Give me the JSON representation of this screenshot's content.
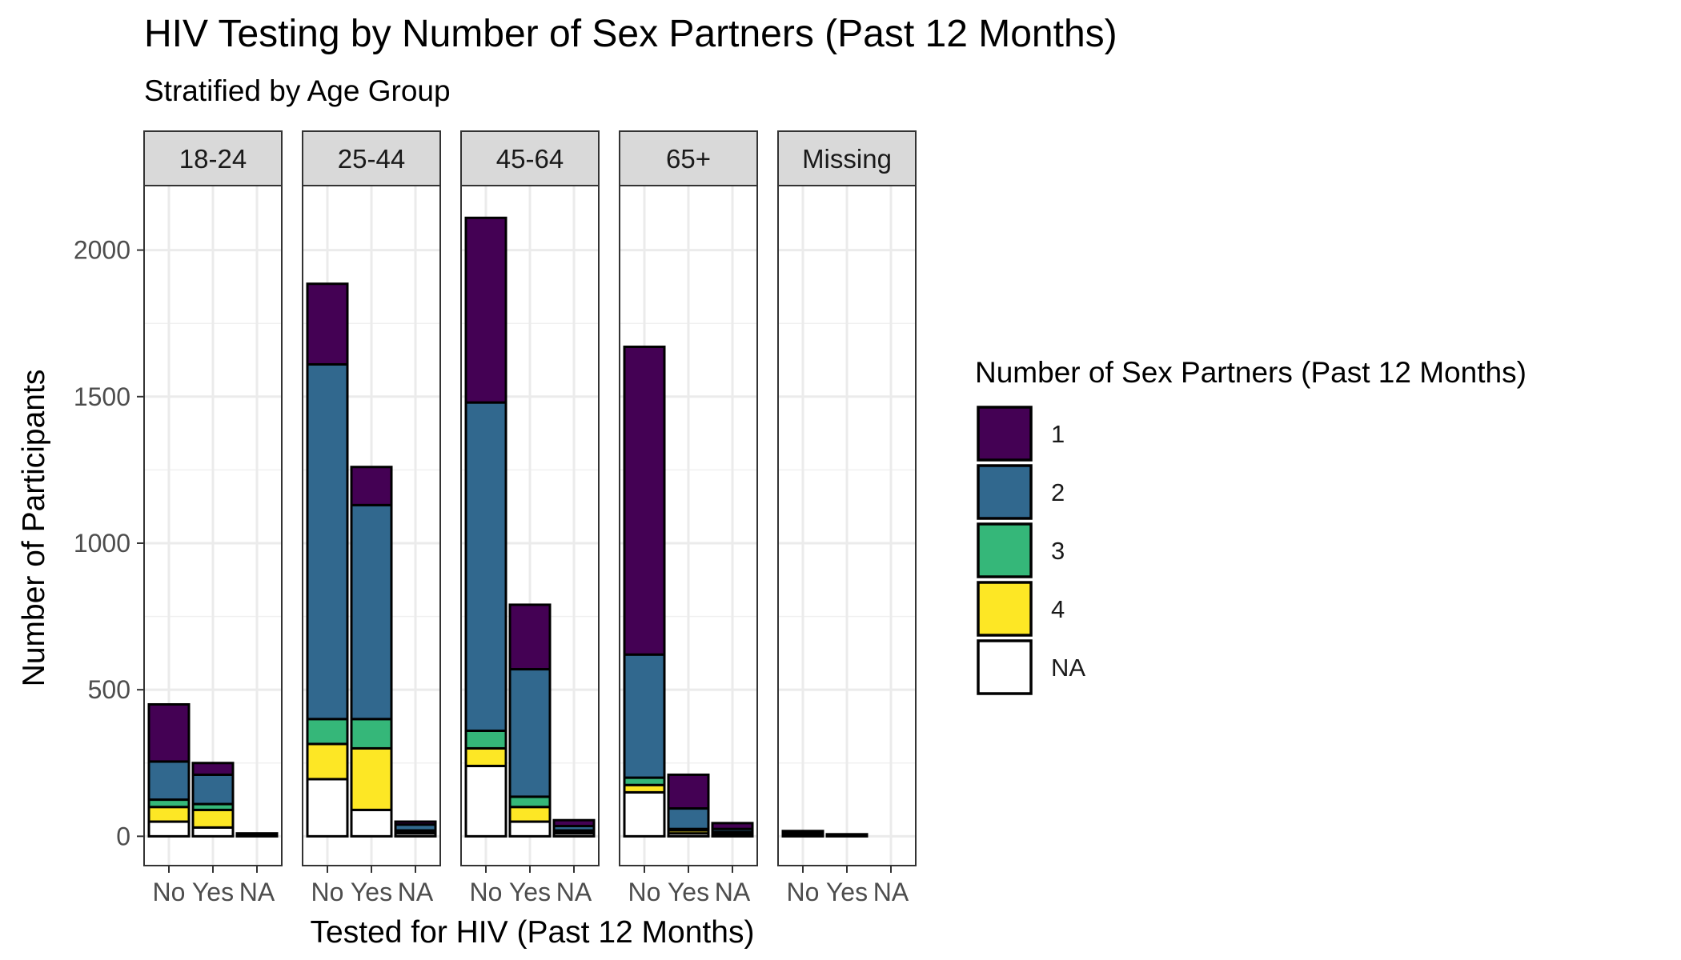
{
  "chart_data": {
    "type": "bar",
    "stacked": true,
    "title": "HIV Testing by Number of Sex Partners (Past 12 Months)",
    "subtitle": "Stratified by Age Group",
    "xlabel": "Tested for HIV (Past 12 Months)",
    "ylabel": "Number of Participants",
    "ylim": [
      -100,
      2220
    ],
    "yticks": [
      0,
      500,
      1000,
      1500,
      2000
    ],
    "grid": true,
    "categories": [
      "No",
      "Yes",
      "NA"
    ],
    "legend": {
      "title": "Number of Sex Partners (Past 12 Months)",
      "placement": "right",
      "entries": [
        "1",
        "2",
        "3",
        "4",
        "NA"
      ]
    },
    "colors": {
      "1": "#440154",
      "2": "#31688e",
      "3": "#35b779",
      "4": "#fde725",
      "NA": "#ffffff"
    },
    "facets": [
      {
        "label": "18-24",
        "stacks": [
          {
            "x": "No",
            "values": {
              "NA": 50,
              "4": 50,
              "3": 25,
              "2": 130,
              "1": 195
            }
          },
          {
            "x": "Yes",
            "values": {
              "NA": 30,
              "4": 60,
              "3": 20,
              "2": 100,
              "1": 40
            }
          },
          {
            "x": "NA",
            "values": {
              "NA": 0,
              "4": 2,
              "3": 0,
              "2": 3,
              "1": 5
            }
          }
        ]
      },
      {
        "label": "25-44",
        "stacks": [
          {
            "x": "No",
            "values": {
              "NA": 195,
              "4": 120,
              "3": 85,
              "2": 1210,
              "1": 275
            }
          },
          {
            "x": "Yes",
            "values": {
              "NA": 90,
              "4": 210,
              "3": 100,
              "2": 730,
              "1": 130
            }
          },
          {
            "x": "NA",
            "values": {
              "NA": 10,
              "4": 5,
              "3": 5,
              "2": 20,
              "1": 10
            }
          }
        ]
      },
      {
        "label": "45-64",
        "stacks": [
          {
            "x": "No",
            "values": {
              "NA": 240,
              "4": 60,
              "3": 60,
              "2": 1120,
              "1": 630
            }
          },
          {
            "x": "Yes",
            "values": {
              "NA": 50,
              "4": 50,
              "3": 35,
              "2": 435,
              "1": 220
            }
          },
          {
            "x": "NA",
            "values": {
              "NA": 10,
              "4": 5,
              "3": 5,
              "2": 15,
              "1": 20
            }
          }
        ]
      },
      {
        "label": "65+",
        "stacks": [
          {
            "x": "No",
            "values": {
              "NA": 150,
              "4": 25,
              "3": 25,
              "2": 420,
              "1": 1050
            }
          },
          {
            "x": "Yes",
            "values": {
              "NA": 10,
              "4": 10,
              "3": 5,
              "2": 70,
              "1": 115
            }
          },
          {
            "x": "NA",
            "values": {
              "NA": 5,
              "4": 5,
              "3": 5,
              "2": 10,
              "1": 20
            }
          }
        ]
      },
      {
        "label": "Missing",
        "stacks": [
          {
            "x": "No",
            "values": {
              "NA": 5,
              "4": 2,
              "3": 1,
              "2": 4,
              "1": 6
            }
          },
          {
            "x": "Yes",
            "values": {
              "NA": 1,
              "4": 1,
              "3": 0,
              "2": 2,
              "1": 3
            }
          },
          {
            "x": "NA",
            "values": {
              "NA": 0,
              "4": 0,
              "3": 0,
              "2": 0,
              "1": 0
            }
          }
        ]
      }
    ]
  }
}
